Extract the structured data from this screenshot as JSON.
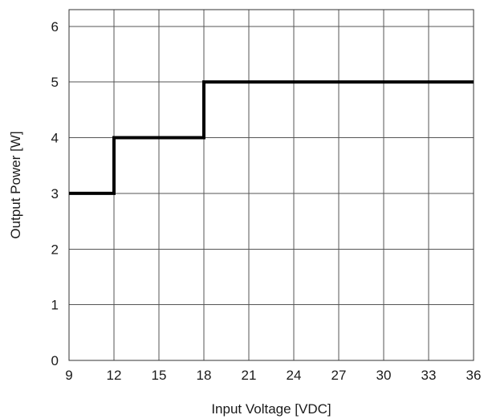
{
  "chart_data": {
    "type": "line",
    "xlabel": "Input Voltage [VDC]",
    "ylabel": "Output Power [W]",
    "xlim": [
      9,
      36
    ],
    "ylim": [
      0,
      6.3
    ],
    "x_ticks": [
      9,
      12,
      15,
      18,
      21,
      24,
      27,
      30,
      33,
      36
    ],
    "y_ticks": [
      0,
      1,
      2,
      3,
      4,
      5,
      6
    ],
    "grid": true,
    "series": [
      {
        "step": true,
        "x": [
          9,
          12,
          12,
          18,
          18,
          36
        ],
        "y": [
          3,
          3,
          4,
          4,
          5,
          5
        ],
        "color": "#000000"
      }
    ]
  }
}
